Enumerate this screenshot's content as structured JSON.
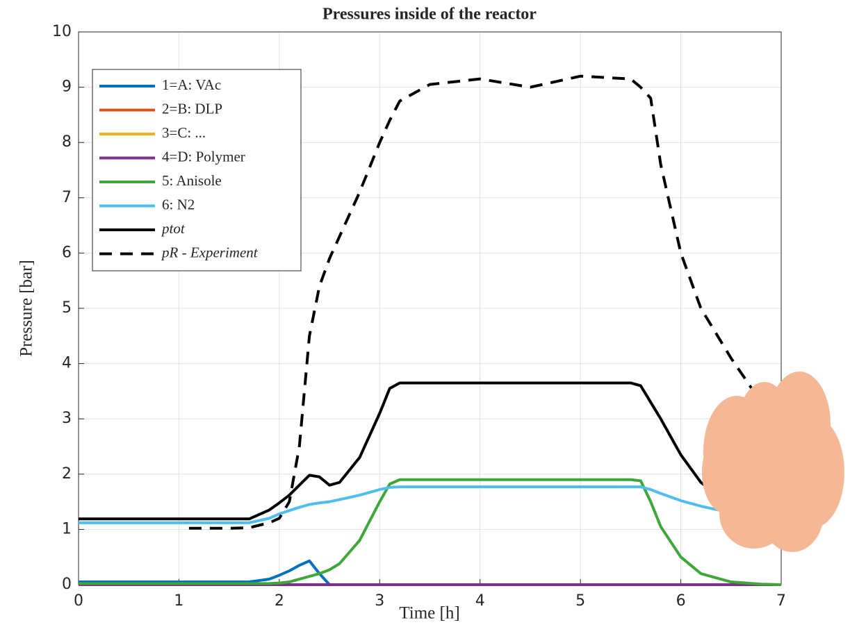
{
  "chart_data": {
    "type": "line",
    "title": "Pressures inside of the reactor",
    "x_label": "Time [h]",
    "y_label": "Pressure [bar]",
    "xlim": [
      0,
      7
    ],
    "xticks": [
      0,
      1,
      2,
      3,
      4,
      5,
      6,
      7
    ],
    "ylim": [
      0,
      10
    ],
    "yticks": [
      0,
      1,
      2,
      3,
      4,
      5,
      6,
      7,
      8,
      9,
      10
    ],
    "grid": true,
    "legend": "upper left",
    "x": [
      0,
      0.5,
      1,
      1.1,
      1.5,
      1.7,
      1.9,
      2.0,
      2.1,
      2.2,
      2.3,
      2.4,
      2.5,
      2.6,
      2.8,
      3.0,
      3.1,
      3.2,
      3.5,
      4.0,
      4.5,
      5.0,
      5.5,
      5.6,
      5.7,
      5.8,
      6.0,
      6.2,
      6.5,
      6.8,
      7.0
    ],
    "series": [
      {
        "name": "1=A: VAc",
        "color": "#0072bd",
        "values": [
          0.05,
          0.05,
          0.05,
          0.05,
          0.05,
          0.05,
          0.1,
          0.17,
          0.25,
          0.35,
          0.43,
          0.2,
          0,
          0,
          0,
          0,
          0,
          0,
          0,
          0,
          0,
          0,
          0,
          0,
          0,
          0,
          0,
          0,
          0,
          0,
          0
        ]
      },
      {
        "name": "2=B: DLP",
        "color": "#d95319",
        "values": [
          0,
          0,
          0,
          0,
          0,
          0,
          0,
          0,
          0,
          0,
          0,
          0,
          0,
          0,
          0,
          0,
          0,
          0,
          0,
          0,
          0,
          0,
          0,
          0,
          0,
          0,
          0,
          0,
          0,
          0,
          0
        ]
      },
      {
        "name": "3=C: ...",
        "color": "#edb120",
        "values": [
          0,
          0,
          0,
          0,
          0,
          0,
          0,
          0,
          0,
          0,
          0,
          0,
          0,
          0,
          0,
          0,
          0,
          0,
          0,
          0,
          0,
          0,
          0,
          0,
          0,
          0,
          0,
          0,
          0,
          0,
          0
        ]
      },
      {
        "name": "4=D: Polymer",
        "color": "#7e2f8e",
        "values": [
          0,
          0,
          0,
          0,
          0,
          0,
          0,
          0,
          0,
          0,
          0,
          0,
          0,
          0,
          0,
          0,
          0,
          0,
          0,
          0,
          0,
          0,
          0,
          0,
          0,
          0,
          0,
          0,
          0,
          0,
          0
        ]
      },
      {
        "name": "5: Anisole",
        "color": "#3fa63a",
        "values": [
          0.02,
          0.02,
          0.02,
          0.02,
          0.02,
          0.02,
          0.02,
          0.03,
          0.05,
          0.1,
          0.15,
          0.2,
          0.27,
          0.38,
          0.8,
          1.5,
          1.82,
          1.9,
          1.9,
          1.9,
          1.9,
          1.9,
          1.9,
          1.88,
          1.5,
          1.05,
          0.5,
          0.2,
          0.05,
          0.01,
          0
        ]
      },
      {
        "name": "6: N2",
        "color": "#4dbeee",
        "values": [
          1.12,
          1.12,
          1.12,
          1.12,
          1.12,
          1.12,
          1.2,
          1.28,
          1.34,
          1.4,
          1.45,
          1.48,
          1.5,
          1.54,
          1.62,
          1.72,
          1.76,
          1.77,
          1.77,
          1.77,
          1.77,
          1.77,
          1.77,
          1.77,
          1.72,
          1.65,
          1.52,
          1.42,
          1.3,
          1.2,
          1.15
        ]
      },
      {
        "name": "ptot",
        "color": "#000000",
        "values": [
          1.19,
          1.19,
          1.19,
          1.19,
          1.19,
          1.19,
          1.35,
          1.48,
          1.62,
          1.8,
          1.98,
          1.95,
          1.8,
          1.85,
          2.3,
          3.1,
          3.55,
          3.65,
          3.65,
          3.65,
          3.65,
          3.65,
          3.65,
          3.6,
          3.3,
          3.0,
          2.35,
          1.85,
          1.45,
          1.17,
          1.15
        ]
      },
      {
        "name": "pR - Experiment",
        "color": "#000000",
        "dashed": true,
        "values": [
          null,
          null,
          null,
          1.02,
          1.02,
          1.03,
          1.12,
          1.2,
          1.5,
          2.5,
          4.5,
          5.4,
          5.9,
          6.3,
          7.1,
          8.0,
          8.4,
          8.75,
          9.05,
          9.15,
          9.0,
          9.2,
          9.15,
          9.0,
          8.8,
          7.6,
          6.0,
          5.0,
          4.1,
          3.3,
          3.1
        ]
      }
    ]
  }
}
